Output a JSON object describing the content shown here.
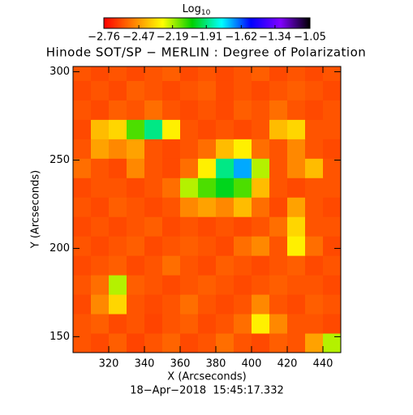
{
  "chart_data": {
    "type": "heatmap",
    "title": "Hinode SOT/SP − MERLIN : Degree of Polarization",
    "x_label": "X (Arcseconds)",
    "y_label": "Y (Arcseconds)",
    "footer": "18−Apr−2018  15:45:17.332",
    "colorbar_label": "Log",
    "colorbar_label_sub": "10",
    "colorscale": [
      "#ff0000",
      "#ff8000",
      "#ffff00",
      "#00d000",
      "#00ffff",
      "#0000ff",
      "#8000ff",
      "#000000"
    ],
    "zlim": [
      -2.76,
      -1.05
    ],
    "colorbar_ticks": [
      {
        "value": -2.76,
        "label": "−2.76"
      },
      {
        "value": -2.47,
        "label": "−2.47"
      },
      {
        "value": -2.19,
        "label": "−2.19"
      },
      {
        "value": -1.91,
        "label": "−1.91"
      },
      {
        "value": -1.62,
        "label": "−1.62"
      },
      {
        "value": -1.34,
        "label": "−1.34"
      },
      {
        "value": -1.05,
        "label": "−1.05"
      }
    ],
    "xlim": [
      300,
      450
    ],
    "ylim": [
      141,
      303
    ],
    "xticks": [
      320,
      340,
      360,
      380,
      400,
      420,
      440
    ],
    "yticks": [
      150,
      200,
      250,
      300
    ],
    "xbins": [
      300,
      310,
      320,
      330,
      340,
      350,
      360,
      370,
      380,
      390,
      400,
      410,
      420,
      430,
      440,
      450
    ],
    "ybins": [
      141,
      152,
      163,
      174,
      185,
      196,
      207,
      218,
      229,
      240,
      251,
      262,
      273,
      284,
      295,
      303
    ],
    "z": [
      [
        -2.6,
        -2.62,
        -2.58,
        -2.63,
        -2.6,
        -2.57,
        -2.62,
        -2.6,
        -2.55,
        -2.6,
        -2.62,
        -2.58,
        -2.6,
        -2.45,
        -2.2
      ],
      [
        -2.6,
        -2.58,
        -2.62,
        -2.6,
        -2.63,
        -2.6,
        -2.58,
        -2.62,
        -2.6,
        -2.55,
        -2.3,
        -2.5,
        -2.6,
        -2.6,
        -2.62
      ],
      [
        -2.62,
        -2.5,
        -2.35,
        -2.6,
        -2.62,
        -2.6,
        -2.55,
        -2.6,
        -2.62,
        -2.6,
        -2.5,
        -2.6,
        -2.62,
        -2.58,
        -2.6
      ],
      [
        -2.6,
        -2.55,
        -2.2,
        -2.58,
        -2.6,
        -2.62,
        -2.6,
        -2.58,
        -2.6,
        -2.62,
        -2.6,
        -2.58,
        -2.6,
        -2.6,
        -2.62
      ],
      [
        -2.62,
        -2.6,
        -2.58,
        -2.62,
        -2.6,
        -2.55,
        -2.6,
        -2.62,
        -2.58,
        -2.6,
        -2.62,
        -2.6,
        -2.58,
        -2.62,
        -2.6
      ],
      [
        -2.6,
        -2.62,
        -2.6,
        -2.58,
        -2.62,
        -2.6,
        -2.58,
        -2.6,
        -2.62,
        -2.55,
        -2.5,
        -2.6,
        -2.3,
        -2.55,
        -2.62
      ],
      [
        -2.62,
        -2.6,
        -2.62,
        -2.6,
        -2.58,
        -2.62,
        -2.6,
        -2.62,
        -2.6,
        -2.62,
        -2.6,
        -2.55,
        -2.35,
        -2.6,
        -2.6
      ],
      [
        -2.6,
        -2.62,
        -2.58,
        -2.6,
        -2.62,
        -2.6,
        -2.5,
        -2.45,
        -2.5,
        -2.4,
        -2.55,
        -2.62,
        -2.45,
        -2.6,
        -2.62
      ],
      [
        -2.62,
        -2.6,
        -2.6,
        -2.62,
        -2.6,
        -2.55,
        -2.2,
        -2.1,
        -2.0,
        -2.1,
        -2.4,
        -2.6,
        -2.62,
        -2.6,
        -2.6
      ],
      [
        -2.55,
        -2.6,
        -2.62,
        -2.5,
        -2.6,
        -2.62,
        -2.55,
        -2.3,
        -1.9,
        -1.7,
        -2.2,
        -2.6,
        -2.5,
        -2.4,
        -2.6
      ],
      [
        -2.6,
        -2.45,
        -2.5,
        -2.45,
        -2.6,
        -2.62,
        -2.6,
        -2.55,
        -2.4,
        -2.3,
        -2.55,
        -2.6,
        -2.5,
        -2.6,
        -2.62
      ],
      [
        -2.62,
        -2.4,
        -2.35,
        -2.1,
        -1.9,
        -2.3,
        -2.6,
        -2.62,
        -2.6,
        -2.62,
        -2.6,
        -2.4,
        -2.35,
        -2.6,
        -2.6
      ],
      [
        -2.6,
        -2.62,
        -2.58,
        -2.6,
        -2.55,
        -2.6,
        -2.62,
        -2.6,
        -2.62,
        -2.58,
        -2.6,
        -2.55,
        -2.6,
        -2.62,
        -2.6
      ],
      [
        -2.62,
        -2.6,
        -2.62,
        -2.58,
        -2.6,
        -2.62,
        -2.6,
        -2.58,
        -2.62,
        -2.6,
        -2.62,
        -2.6,
        -2.58,
        -2.6,
        -2.62
      ],
      [
        -2.6,
        -2.62,
        -2.6,
        -2.62,
        -2.6,
        -2.58,
        -2.62,
        -2.6,
        -2.62,
        -2.6,
        -2.58,
        -2.62,
        -2.6,
        -2.62,
        -2.6
      ]
    ]
  }
}
